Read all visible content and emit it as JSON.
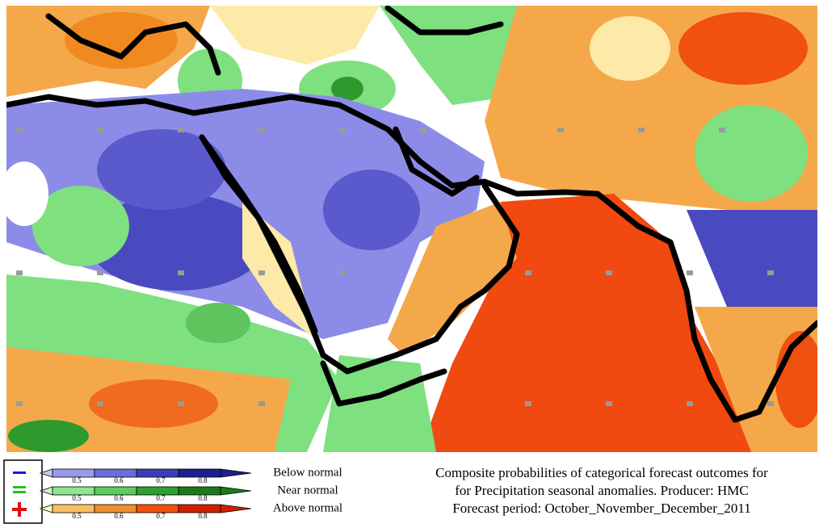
{
  "legend": {
    "items": [
      {
        "label": "Below normal",
        "ticks": [
          "0.5",
          "0.6",
          "0.7",
          "0.8"
        ]
      },
      {
        "label": "Near normal",
        "ticks": [
          "0.5",
          "0.6",
          "0.7",
          "0.8"
        ]
      },
      {
        "label": "Above normal",
        "ticks": [
          "0.5",
          "0.6",
          "0.7",
          "0.8"
        ]
      }
    ]
  },
  "caption": {
    "lines": [
      "Composite probabilities of categorical forecast outcomes for",
      "for Precipitation seasonal anomalies. Producer: HMC",
      "Forecast period:   October_November_December_2011"
    ]
  }
}
